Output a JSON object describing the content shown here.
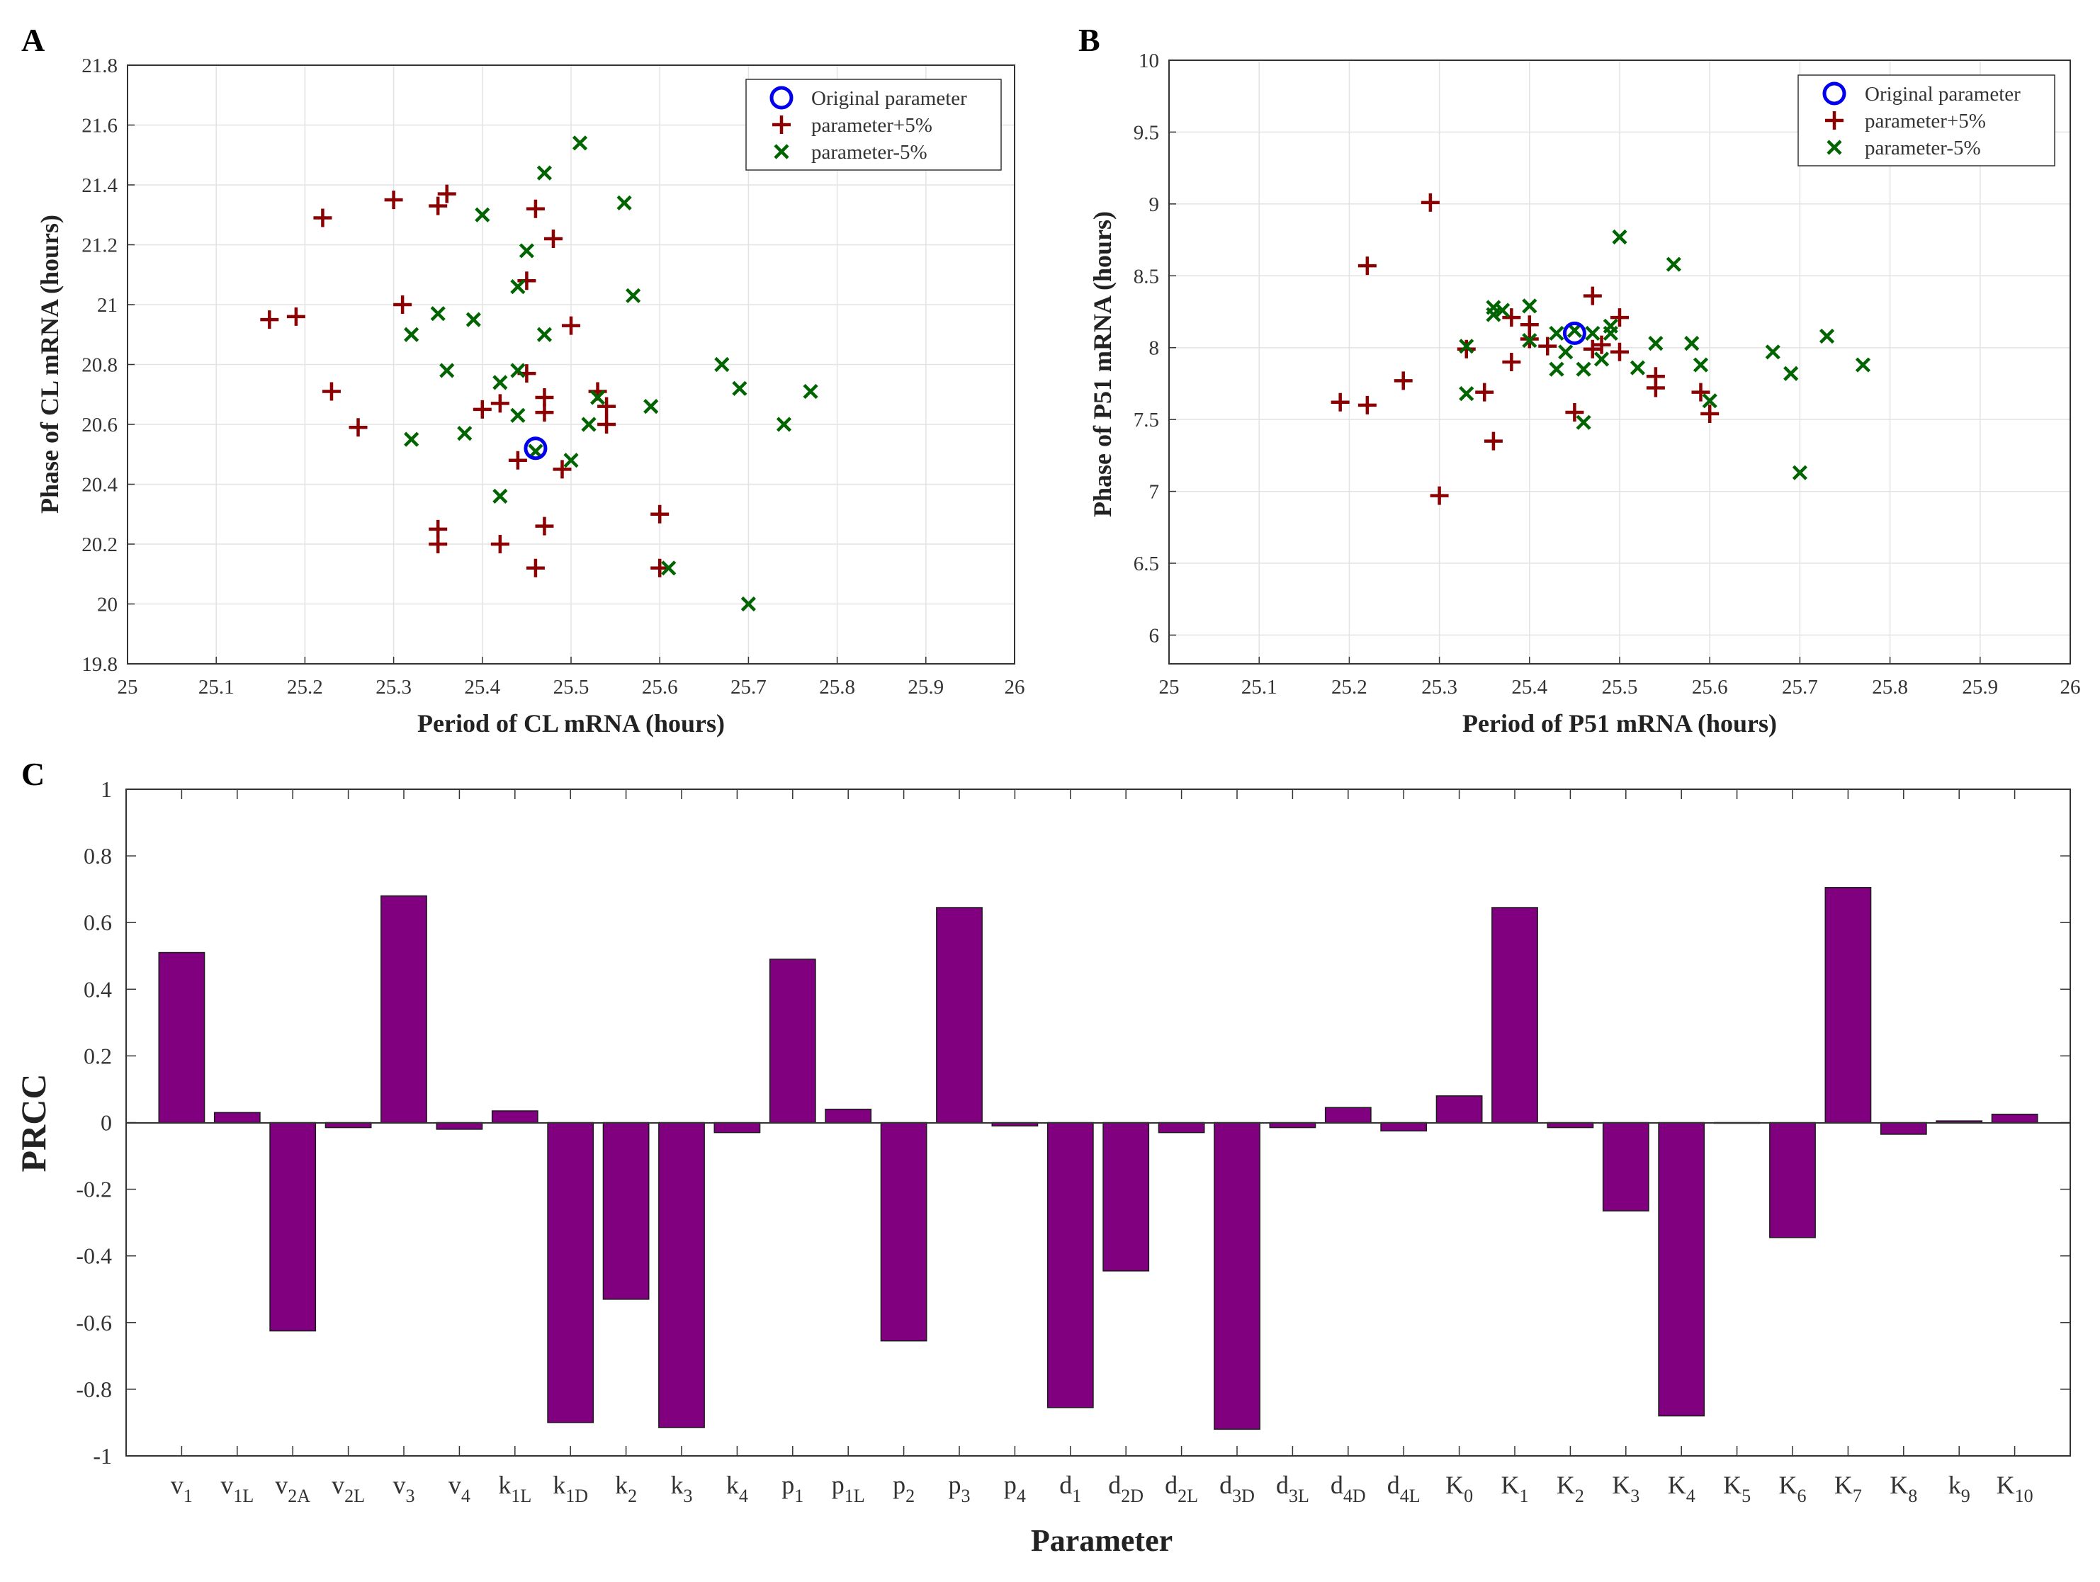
{
  "panels": {
    "a": "A",
    "b": "B",
    "c": "C"
  },
  "chart_data": [
    {
      "type": "scatter",
      "panel": "A",
      "xlabel": "Period of CL mRNA (hours)",
      "ylabel": "Phase of CL mRNA (hours)",
      "xlim": [
        25,
        26
      ],
      "ylim": [
        19.8,
        21.8
      ],
      "xticks": [
        "25",
        "25.1",
        "25.2",
        "25.3",
        "25.4",
        "25.5",
        "25.6",
        "25.7",
        "25.8",
        "25.9",
        "26"
      ],
      "yticks": [
        "19.8",
        "20",
        "20.2",
        "20.4",
        "20.6",
        "20.8",
        "21",
        "21.2",
        "21.4",
        "21.6",
        "21.8"
      ],
      "grid": true,
      "legend": "top-right",
      "series": [
        {
          "name": "Original parameter",
          "color": "#0000ee",
          "marker": "circle",
          "points": [
            [
              25.46,
              20.52
            ]
          ]
        },
        {
          "name": "parameter+5%",
          "color": "#8b0000",
          "marker": "plus",
          "points": [
            [
              25.16,
              20.95
            ],
            [
              25.19,
              20.96
            ],
            [
              25.22,
              21.29
            ],
            [
              25.23,
              20.71
            ],
            [
              25.26,
              20.59
            ],
            [
              25.3,
              21.35
            ],
            [
              25.31,
              21.0
            ],
            [
              25.35,
              21.33
            ],
            [
              25.36,
              21.37
            ],
            [
              25.35,
              20.25
            ],
            [
              25.35,
              20.2
            ],
            [
              25.4,
              20.65
            ],
            [
              25.42,
              20.67
            ],
            [
              25.42,
              20.2
            ],
            [
              25.44,
              20.48
            ],
            [
              25.45,
              20.77
            ],
            [
              25.45,
              21.08
            ],
            [
              25.46,
              21.32
            ],
            [
              25.46,
              20.12
            ],
            [
              25.47,
              20.69
            ],
            [
              25.47,
              20.64
            ],
            [
              25.47,
              20.26
            ],
            [
              25.48,
              21.22
            ],
            [
              25.49,
              20.45
            ],
            [
              25.5,
              20.93
            ],
            [
              25.53,
              20.71
            ],
            [
              25.54,
              20.66
            ],
            [
              25.54,
              20.6
            ],
            [
              25.6,
              20.3
            ],
            [
              25.6,
              20.12
            ]
          ]
        },
        {
          "name": "parameter-5%",
          "color": "#006400",
          "marker": "x",
          "points": [
            [
              25.32,
              20.9
            ],
            [
              25.32,
              20.55
            ],
            [
              25.35,
              20.97
            ],
            [
              25.36,
              20.78
            ],
            [
              25.38,
              20.57
            ],
            [
              25.39,
              20.95
            ],
            [
              25.4,
              21.3
            ],
            [
              25.42,
              20.74
            ],
            [
              25.42,
              20.36
            ],
            [
              25.44,
              21.06
            ],
            [
              25.44,
              20.78
            ],
            [
              25.44,
              20.63
            ],
            [
              25.45,
              21.18
            ],
            [
              25.46,
              20.51
            ],
            [
              25.47,
              21.44
            ],
            [
              25.47,
              20.9
            ],
            [
              25.5,
              20.48
            ],
            [
              25.51,
              21.54
            ],
            [
              25.52,
              20.6
            ],
            [
              25.53,
              20.69
            ],
            [
              25.56,
              21.34
            ],
            [
              25.57,
              21.03
            ],
            [
              25.59,
              20.66
            ],
            [
              25.61,
              20.12
            ],
            [
              25.67,
              20.8
            ],
            [
              25.69,
              20.72
            ],
            [
              25.7,
              20.0
            ],
            [
              25.74,
              20.6
            ],
            [
              25.77,
              20.71
            ]
          ]
        }
      ]
    },
    {
      "type": "scatter",
      "panel": "B",
      "xlabel": "Period of P51 mRNA (hours)",
      "ylabel": "Phase of P51 mRNA (hours)",
      "xlim": [
        25,
        26
      ],
      "ylim": [
        5.8,
        10
      ],
      "xticks": [
        "25",
        "25.1",
        "25.2",
        "25.3",
        "25.4",
        "25.5",
        "25.6",
        "25.7",
        "25.8",
        "25.9",
        "26"
      ],
      "yticks": [
        "6",
        "6.5",
        "7",
        "7.5",
        "8",
        "8.5",
        "9",
        "9.5",
        "10"
      ],
      "grid": true,
      "legend": "top-right",
      "series": [
        {
          "name": "Original parameter",
          "color": "#0000ee",
          "marker": "circle",
          "points": [
            [
              25.45,
              8.1
            ]
          ]
        },
        {
          "name": "parameter+5%",
          "color": "#8b0000",
          "marker": "plus",
          "points": [
            [
              25.19,
              7.62
            ],
            [
              25.22,
              7.6
            ],
            [
              25.22,
              8.57
            ],
            [
              25.26,
              7.77
            ],
            [
              25.29,
              9.01
            ],
            [
              25.3,
              6.97
            ],
            [
              25.33,
              7.99
            ],
            [
              25.35,
              7.69
            ],
            [
              25.36,
              7.35
            ],
            [
              25.38,
              7.9
            ],
            [
              25.38,
              8.21
            ],
            [
              25.4,
              8.16
            ],
            [
              25.4,
              8.06
            ],
            [
              25.42,
              8.01
            ],
            [
              25.45,
              7.55
            ],
            [
              25.47,
              8.36
            ],
            [
              25.47,
              7.99
            ],
            [
              25.48,
              8.02
            ],
            [
              25.5,
              8.21
            ],
            [
              25.5,
              7.97
            ],
            [
              25.54,
              7.8
            ],
            [
              25.54,
              7.72
            ],
            [
              25.59,
              7.69
            ],
            [
              25.6,
              7.54
            ]
          ]
        },
        {
          "name": "parameter-5%",
          "color": "#006400",
          "marker": "x",
          "points": [
            [
              25.33,
              8.01
            ],
            [
              25.33,
              7.68
            ],
            [
              25.36,
              8.28
            ],
            [
              25.36,
              8.23
            ],
            [
              25.37,
              8.26
            ],
            [
              25.4,
              8.29
            ],
            [
              25.4,
              8.05
            ],
            [
              25.43,
              8.1
            ],
            [
              25.43,
              7.85
            ],
            [
              25.44,
              7.97
            ],
            [
              25.45,
              8.12
            ],
            [
              25.46,
              7.85
            ],
            [
              25.46,
              7.48
            ],
            [
              25.47,
              8.1
            ],
            [
              25.48,
              7.92
            ],
            [
              25.49,
              8.15
            ],
            [
              25.49,
              8.1
            ],
            [
              25.5,
              8.77
            ],
            [
              25.52,
              7.86
            ],
            [
              25.54,
              8.03
            ],
            [
              25.56,
              8.58
            ],
            [
              25.58,
              8.03
            ],
            [
              25.59,
              7.88
            ],
            [
              25.6,
              7.63
            ],
            [
              25.67,
              7.97
            ],
            [
              25.69,
              7.82
            ],
            [
              25.7,
              7.13
            ],
            [
              25.73,
              8.08
            ],
            [
              25.77,
              7.88
            ]
          ]
        }
      ]
    },
    {
      "type": "bar",
      "panel": "C",
      "xlabel": "Parameter",
      "ylabel": "PRCC",
      "ylim": [
        -1,
        1
      ],
      "yticks": [
        "-1",
        "-0.8",
        "-0.6",
        "-0.4",
        "-0.2",
        "0",
        "0.2",
        "0.4",
        "0.6",
        "0.8",
        "1"
      ],
      "bar_color": "#800080",
      "categories": [
        {
          "base": "v",
          "sub": "1"
        },
        {
          "base": "v",
          "sub": "1L"
        },
        {
          "base": "v",
          "sub": "2A"
        },
        {
          "base": "v",
          "sub": "2L"
        },
        {
          "base": "v",
          "sub": "3"
        },
        {
          "base": "v",
          "sub": "4"
        },
        {
          "base": "k",
          "sub": "1L"
        },
        {
          "base": "k",
          "sub": "1D"
        },
        {
          "base": "k",
          "sub": "2"
        },
        {
          "base": "k",
          "sub": "3"
        },
        {
          "base": "k",
          "sub": "4"
        },
        {
          "base": "p",
          "sub": "1"
        },
        {
          "base": "p",
          "sub": "1L"
        },
        {
          "base": "p",
          "sub": "2"
        },
        {
          "base": "p",
          "sub": "3"
        },
        {
          "base": "p",
          "sub": "4"
        },
        {
          "base": "d",
          "sub": "1"
        },
        {
          "base": "d",
          "sub": "2D"
        },
        {
          "base": "d",
          "sub": "2L"
        },
        {
          "base": "d",
          "sub": "3D"
        },
        {
          "base": "d",
          "sub": "3L"
        },
        {
          "base": "d",
          "sub": "4D"
        },
        {
          "base": "d",
          "sub": "4L"
        },
        {
          "base": "K",
          "sub": "0"
        },
        {
          "base": "K",
          "sub": "1"
        },
        {
          "base": "K",
          "sub": "2"
        },
        {
          "base": "K",
          "sub": "3"
        },
        {
          "base": "K",
          "sub": "4"
        },
        {
          "base": "K",
          "sub": "5"
        },
        {
          "base": "K",
          "sub": "6"
        },
        {
          "base": "K",
          "sub": "7"
        },
        {
          "base": "K",
          "sub": "8"
        },
        {
          "base": "k",
          "sub": "9"
        },
        {
          "base": "K",
          "sub": "10"
        }
      ],
      "values": [
        0.51,
        0.03,
        -0.625,
        -0.015,
        0.68,
        -0.02,
        0.035,
        -0.9,
        -0.53,
        -0.915,
        -0.03,
        0.49,
        0.04,
        -0.655,
        0.645,
        -0.01,
        -0.855,
        -0.445,
        -0.03,
        -0.92,
        -0.015,
        0.045,
        -0.025,
        0.08,
        0.645,
        -0.015,
        -0.265,
        -0.88,
        0.0,
        -0.345,
        0.705,
        -0.035,
        0.005,
        0.025
      ]
    }
  ]
}
